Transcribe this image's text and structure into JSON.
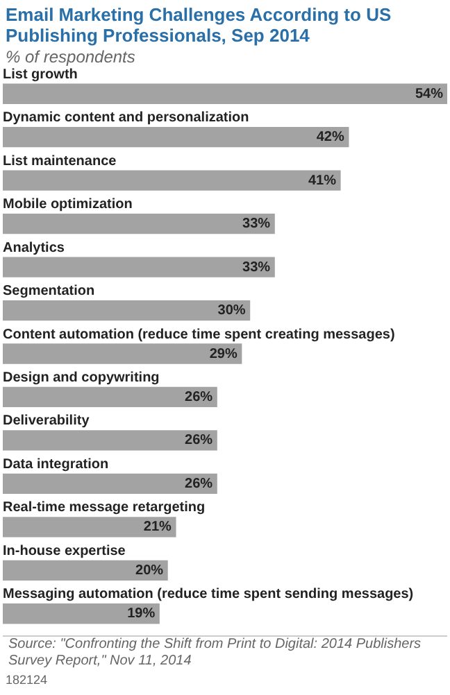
{
  "chart_data": {
    "type": "bar",
    "orientation": "horizontal",
    "title": "Email Marketing Challenges According to US Publishing Professionals, Sep 2014",
    "subtitle": "% of respondents",
    "categories": [
      "List growth",
      "Dynamic content and personalization",
      "List maintenance",
      "Mobile optimization",
      "Analytics",
      "Segmentation",
      "Content automation (reduce time spent creating messages)",
      "Design and copywriting",
      "Deliverability",
      "Data integration",
      "Real-time message retargeting",
      "In-house expertise",
      "Messaging automation (reduce time spent sending messages)"
    ],
    "values": [
      54,
      42,
      41,
      33,
      33,
      30,
      29,
      26,
      26,
      26,
      21,
      20,
      19
    ],
    "value_labels": [
      "54%",
      "42%",
      "41%",
      "33%",
      "33%",
      "30%",
      "29%",
      "26%",
      "26%",
      "26%",
      "21%",
      "20%",
      "19%"
    ],
    "color": "#a3a3a3",
    "tick_labels": false,
    "annotations": [
      "Source: \"Confronting the Shift from Print to Digital: 2014 Publishers Survey Report,\" Nov 11, 2014",
      "182124"
    ]
  }
}
